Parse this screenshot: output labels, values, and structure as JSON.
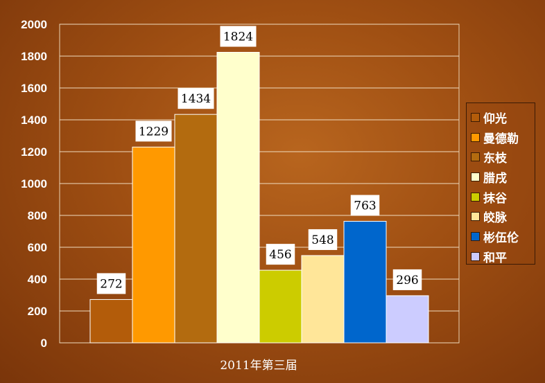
{
  "chart_data": {
    "type": "bar",
    "title": "",
    "xlabel": "2011年第三届",
    "ylabel": "",
    "ylim": [
      0,
      2000
    ],
    "yticks": [
      0,
      200,
      400,
      600,
      800,
      1000,
      1200,
      1400,
      1600,
      1800,
      2000
    ],
    "grid": true,
    "legend_position": "right",
    "series": [
      {
        "name": "仰光",
        "value": 272,
        "color": "#b35c0a"
      },
      {
        "name": "曼德勒",
        "value": 1229,
        "color": "#ff9900"
      },
      {
        "name": "东枝",
        "value": 1434,
        "color": "#b36b0f"
      },
      {
        "name": "腊戌",
        "value": 1824,
        "color": "#ffffcc"
      },
      {
        "name": "抹谷",
        "value": 456,
        "color": "#cccc00"
      },
      {
        "name": "皎脉",
        "value": 548,
        "color": "#ffe699"
      },
      {
        "name": "彬伍伦",
        "value": 763,
        "color": "#0066cc"
      },
      {
        "name": "和平",
        "value": 296,
        "color": "#ccccff"
      }
    ]
  }
}
